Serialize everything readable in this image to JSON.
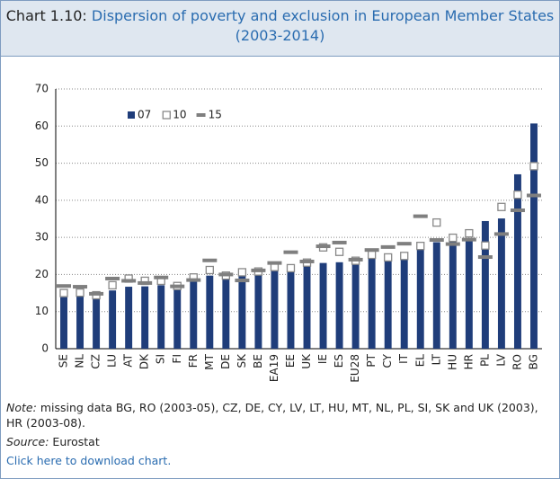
{
  "title_prefix": "Chart 1.10:",
  "chart_data": {
    "type": "bar",
    "title": "Dispersion of poverty and exclusion in European  Member States (2003-2014)",
    "categories": [
      "SE",
      "NL",
      "CZ",
      "LU",
      "AT",
      "DK",
      "SI",
      "FI",
      "FR",
      "MT",
      "DE",
      "SK",
      "BE",
      "EA19",
      "EE",
      "UK",
      "IE",
      "ES",
      "EU28",
      "PT",
      "CY",
      "IT",
      "EL",
      "LT",
      "HU",
      "HR",
      "PL",
      "LV",
      "RO",
      "BG"
    ],
    "series": [
      {
        "name": "07",
        "color": "#1f3d7a",
        "marker": "bar",
        "values": [
          13.9,
          15.0,
          14.0,
          15.7,
          16.7,
          16.8,
          17.1,
          17.4,
          19.0,
          19.7,
          20.6,
          21.3,
          21.6,
          21.8,
          22.0,
          22.6,
          23.1,
          23.3,
          24.4,
          25.0,
          25.2,
          26.0,
          28.3,
          28.7,
          29.4,
          29.3,
          34.4,
          35.1,
          47.0,
          60.7
        ]
      },
      {
        "name": "10",
        "color": "#ffffff",
        "marker": "square",
        "values": [
          15.0,
          15.1,
          14.4,
          17.1,
          18.9,
          18.3,
          18.3,
          16.9,
          19.2,
          21.2,
          19.7,
          20.6,
          20.8,
          22.0,
          21.7,
          23.2,
          27.3,
          26.1,
          23.7,
          25.3,
          24.6,
          25.0,
          27.7,
          34.0,
          29.9,
          31.1,
          27.8,
          38.2,
          41.5,
          49.2
        ]
      },
      {
        "name": "15",
        "color": "#7f7f7f",
        "marker": "dash",
        "values": [
          16.9,
          16.7,
          14.8,
          18.9,
          18.3,
          17.7,
          19.2,
          16.8,
          18.5,
          23.8,
          20.0,
          18.4,
          21.1,
          23.1,
          26.0,
          23.5,
          27.6,
          28.6,
          24.0,
          26.6,
          27.4,
          28.3,
          35.7,
          29.3,
          28.2,
          29.4,
          24.7,
          30.9,
          37.3,
          41.3
        ]
      }
    ],
    "ylim": [
      0,
      70
    ],
    "yticks": [
      0,
      10,
      20,
      30,
      40,
      50,
      60,
      70
    ],
    "grid": true,
    "legend": "top-left"
  },
  "notes": {
    "note_label": "Note:",
    "note": "missing data BG, RO (2003-05), CZ, DE, CY, LV, LT, HU, MT, NL, PL, SI, SK and UK (2003), HR (2003-08).",
    "source_label": "Source:",
    "source": "Eurostat",
    "link": "Click here to download chart."
  }
}
